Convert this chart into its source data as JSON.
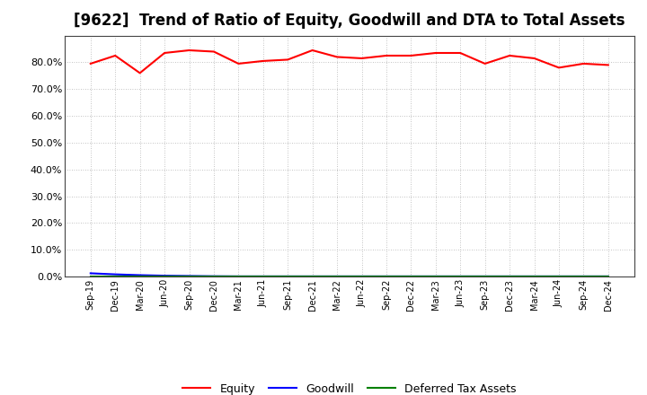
{
  "title": "[9622]  Trend of Ratio of Equity, Goodwill and DTA to Total Assets",
  "x_labels": [
    "Sep-19",
    "Dec-19",
    "Mar-20",
    "Jun-20",
    "Sep-20",
    "Dec-20",
    "Mar-21",
    "Jun-21",
    "Sep-21",
    "Dec-21",
    "Mar-22",
    "Jun-22",
    "Sep-22",
    "Dec-22",
    "Mar-23",
    "Jun-23",
    "Sep-23",
    "Dec-23",
    "Mar-24",
    "Jun-24",
    "Sep-24",
    "Dec-24"
  ],
  "equity": [
    79.5,
    82.5,
    76.0,
    83.5,
    84.5,
    84.0,
    79.5,
    80.5,
    81.0,
    84.5,
    82.0,
    81.5,
    82.5,
    82.5,
    83.5,
    83.5,
    79.5,
    82.5,
    81.5,
    78.0,
    79.5,
    79.0
  ],
  "goodwill": [
    1.2,
    0.8,
    0.5,
    0.3,
    0.2,
    0.1,
    0.05,
    0.05,
    0.05,
    0.05,
    0.05,
    0.05,
    0.05,
    0.05,
    0.05,
    0.05,
    0.05,
    0.05,
    0.05,
    0.05,
    0.05,
    0.05
  ],
  "dta": [
    0.05,
    0.05,
    0.05,
    0.05,
    0.05,
    0.05,
    0.05,
    0.05,
    0.05,
    0.05,
    0.05,
    0.05,
    0.05,
    0.05,
    0.05,
    0.05,
    0.05,
    0.05,
    0.05,
    0.05,
    0.05,
    0.05
  ],
  "equity_color": "#ff0000",
  "goodwill_color": "#0000ff",
  "dta_color": "#008000",
  "ylim": [
    0,
    90
  ],
  "yticks": [
    0,
    10,
    20,
    30,
    40,
    50,
    60,
    70,
    80
  ],
  "background_color": "#ffffff",
  "plot_bg_color": "#ffffff",
  "grid_color": "#b0b0b0",
  "title_fontsize": 12,
  "legend_labels": [
    "Equity",
    "Goodwill",
    "Deferred Tax Assets"
  ]
}
